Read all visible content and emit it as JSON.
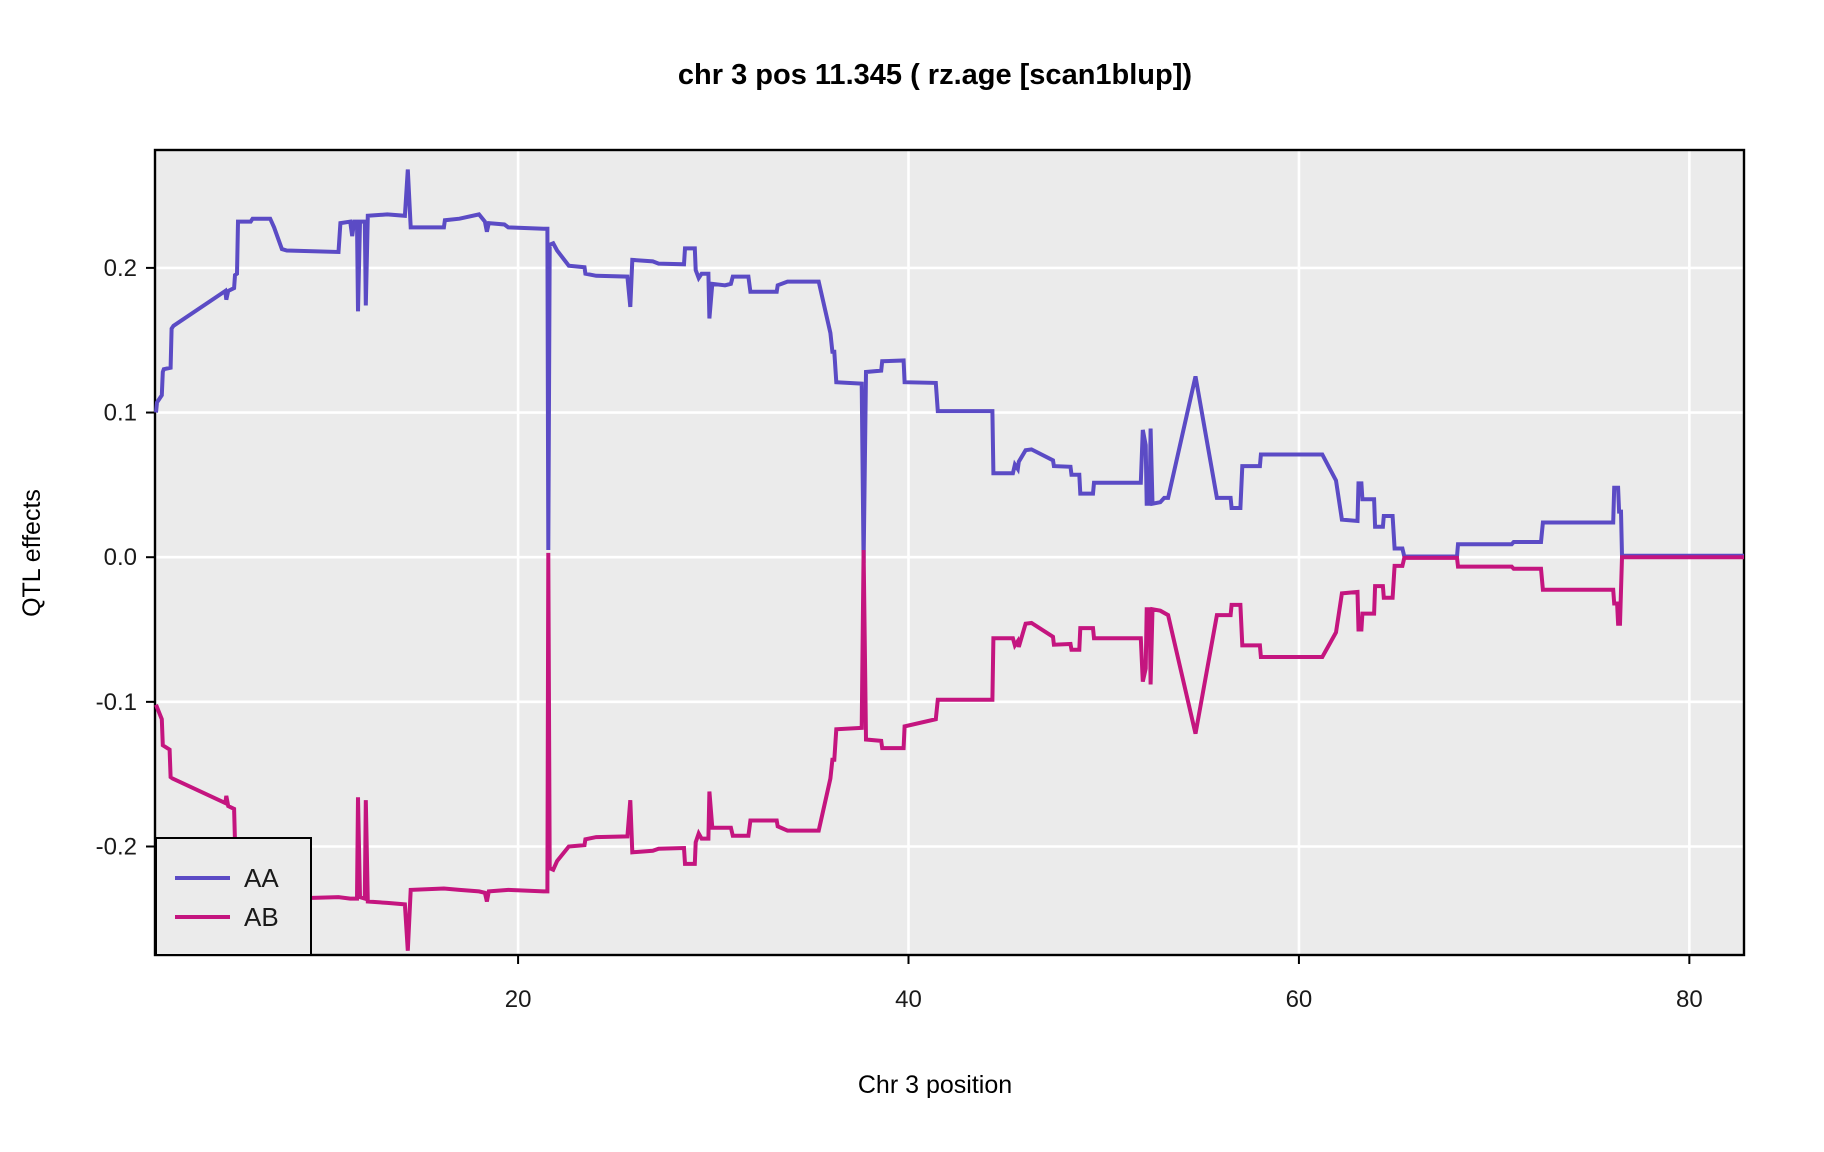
{
  "title": "chr 3 pos 11.345 ( rz.age  [scan1blup])",
  "colors": {
    "AA": "#5B4BC5",
    "AB": "#C4157F",
    "panel_bg": "#EBEBEB",
    "gridline": "#FFFFFF",
    "panel_border": "#000000",
    "text": "#000000"
  },
  "legend": {
    "position": "bottom-left",
    "entries": [
      {
        "label": "AA",
        "color": "#5B4BC5"
      },
      {
        "label": "AB",
        "color": "#C4157F"
      }
    ]
  },
  "chart_data": {
    "type": "line",
    "title": "chr 3 pos 11.345 ( rz.age  [scan1blup])",
    "xlabel": "Chr 3 position",
    "ylabel": "QTL effects",
    "xlim": [
      1.4,
      82.8
    ],
    "ylim": [
      -0.275,
      0.2815
    ],
    "x_ticks": [
      20,
      40,
      60,
      80
    ],
    "x_tick_labels": [
      "20",
      "40",
      "60",
      "80"
    ],
    "y_ticks": [
      -0.2,
      -0.1,
      0.0,
      0.1,
      0.2
    ],
    "y_tick_labels": [
      "-0.2",
      "-0.1",
      "0.0",
      "0.1",
      "0.2"
    ],
    "grid": true,
    "legend_position": "bottom-left",
    "series": [
      {
        "name": "AA",
        "color": "#5B4BC5",
        "points": [
          [
            1.45,
            0.1
          ],
          [
            1.5,
            0.107
          ],
          [
            1.75,
            0.112
          ],
          [
            1.8,
            0.128
          ],
          [
            1.85,
            0.13
          ],
          [
            2.2,
            0.131
          ],
          [
            2.25,
            0.158
          ],
          [
            2.35,
            0.16
          ],
          [
            5.0,
            0.184
          ],
          [
            5.05,
            0.178
          ],
          [
            5.15,
            0.184
          ],
          [
            5.45,
            0.186
          ],
          [
            5.5,
            0.195
          ],
          [
            5.6,
            0.196
          ],
          [
            5.65,
            0.232
          ],
          [
            6.3,
            0.232
          ],
          [
            6.4,
            0.234
          ],
          [
            7.3,
            0.234
          ],
          [
            7.5,
            0.228
          ],
          [
            7.9,
            0.213
          ],
          [
            8.15,
            0.212
          ],
          [
            10.8,
            0.211
          ],
          [
            10.9,
            0.231
          ],
          [
            11.4,
            0.232
          ],
          [
            11.5,
            0.222
          ],
          [
            11.6,
            0.232
          ],
          [
            11.75,
            0.232
          ],
          [
            11.8,
            0.17
          ],
          [
            11.9,
            0.232
          ],
          [
            12.15,
            0.232
          ],
          [
            12.2,
            0.174
          ],
          [
            12.3,
            0.236
          ],
          [
            13.3,
            0.237
          ],
          [
            14.2,
            0.236
          ],
          [
            14.35,
            0.268
          ],
          [
            14.5,
            0.228
          ],
          [
            16.2,
            0.228
          ],
          [
            16.25,
            0.233
          ],
          [
            17.0,
            0.234
          ],
          [
            18.0,
            0.237
          ],
          [
            18.3,
            0.232
          ],
          [
            18.4,
            0.225
          ],
          [
            18.5,
            0.231
          ],
          [
            19.3,
            0.23
          ],
          [
            19.5,
            0.228
          ],
          [
            21.3,
            0.227
          ],
          [
            21.5,
            0.227
          ],
          [
            21.55,
            0.005
          ],
          [
            21.62,
            0.216
          ],
          [
            21.8,
            0.217
          ],
          [
            22.0,
            0.212
          ],
          [
            22.6,
            0.2015
          ],
          [
            23.4,
            0.2005
          ],
          [
            23.45,
            0.196
          ],
          [
            24.0,
            0.1945
          ],
          [
            25.6,
            0.194
          ],
          [
            25.75,
            0.173
          ],
          [
            25.85,
            0.2055
          ],
          [
            26.9,
            0.2045
          ],
          [
            27.2,
            0.203
          ],
          [
            28.5,
            0.2025
          ],
          [
            28.55,
            0.2135
          ],
          [
            29.05,
            0.2135
          ],
          [
            29.1,
            0.1985
          ],
          [
            29.25,
            0.193
          ],
          [
            29.4,
            0.196
          ],
          [
            29.75,
            0.196
          ],
          [
            29.8,
            0.165
          ],
          [
            29.95,
            0.189
          ],
          [
            30.6,
            0.188
          ],
          [
            30.9,
            0.189
          ],
          [
            31.0,
            0.194
          ],
          [
            31.8,
            0.194
          ],
          [
            31.9,
            0.1835
          ],
          [
            33.25,
            0.1835
          ],
          [
            33.3,
            0.188
          ],
          [
            33.8,
            0.1905
          ],
          [
            35.4,
            0.1905
          ],
          [
            36.0,
            0.155
          ],
          [
            36.1,
            0.142
          ],
          [
            36.2,
            0.142
          ],
          [
            36.3,
            0.121
          ],
          [
            37.6,
            0.12
          ],
          [
            37.7,
            -0.004
          ],
          [
            37.82,
            0.128
          ],
          [
            38.6,
            0.129
          ],
          [
            38.65,
            0.1355
          ],
          [
            39.75,
            0.136
          ],
          [
            39.8,
            0.121
          ],
          [
            41.4,
            0.1205
          ],
          [
            41.5,
            0.101
          ],
          [
            44.3,
            0.101
          ],
          [
            44.35,
            0.058
          ],
          [
            45.35,
            0.058
          ],
          [
            45.45,
            0.064
          ],
          [
            45.6,
            0.061
          ],
          [
            45.65,
            0.066
          ],
          [
            46.0,
            0.074
          ],
          [
            46.3,
            0.0745
          ],
          [
            47.4,
            0.067
          ],
          [
            47.45,
            0.063
          ],
          [
            48.3,
            0.0625
          ],
          [
            48.35,
            0.057
          ],
          [
            48.75,
            0.057
          ],
          [
            48.8,
            0.044
          ],
          [
            49.45,
            0.044
          ],
          [
            49.5,
            0.0515
          ],
          [
            51.9,
            0.0515
          ],
          [
            52.0,
            0.088
          ],
          [
            52.15,
            0.0775
          ],
          [
            52.2,
            0.037
          ],
          [
            52.35,
            0.037
          ],
          [
            52.4,
            0.089
          ],
          [
            52.5,
            0.037
          ],
          [
            52.9,
            0.038
          ],
          [
            53.1,
            0.041
          ],
          [
            53.3,
            0.041
          ],
          [
            54.7,
            0.125
          ],
          [
            55.8,
            0.041
          ],
          [
            56.5,
            0.041
          ],
          [
            56.55,
            0.034
          ],
          [
            57.0,
            0.034
          ],
          [
            57.1,
            0.063
          ],
          [
            58.0,
            0.063
          ],
          [
            58.05,
            0.071
          ],
          [
            61.2,
            0.071
          ],
          [
            61.9,
            0.053
          ],
          [
            62.2,
            0.026
          ],
          [
            63.0,
            0.025
          ],
          [
            63.05,
            0.051
          ],
          [
            63.2,
            0.051
          ],
          [
            63.25,
            0.04
          ],
          [
            63.85,
            0.04
          ],
          [
            63.9,
            0.021
          ],
          [
            64.3,
            0.021
          ],
          [
            64.35,
            0.0285
          ],
          [
            64.8,
            0.0285
          ],
          [
            64.9,
            0.006
          ],
          [
            65.3,
            0.006
          ],
          [
            65.4,
            0.0005
          ],
          [
            68.1,
            0.0005
          ],
          [
            68.15,
            0.009
          ],
          [
            70.9,
            0.009
          ],
          [
            71.0,
            0.0105
          ],
          [
            72.4,
            0.0105
          ],
          [
            72.5,
            0.024
          ],
          [
            76.1,
            0.024
          ],
          [
            76.15,
            0.048
          ],
          [
            76.35,
            0.048
          ],
          [
            76.4,
            0.0315
          ],
          [
            76.5,
            0.0315
          ],
          [
            76.55,
            0.001
          ],
          [
            82.8,
            0.001
          ]
        ]
      },
      {
        "name": "AB",
        "color": "#C4157F",
        "points": [
          [
            1.45,
            -0.102
          ],
          [
            1.75,
            -0.112
          ],
          [
            1.8,
            -0.13
          ],
          [
            2.15,
            -0.133
          ],
          [
            2.2,
            -0.152
          ],
          [
            2.3,
            -0.153
          ],
          [
            5.0,
            -0.17
          ],
          [
            5.05,
            -0.165
          ],
          [
            5.15,
            -0.172
          ],
          [
            5.45,
            -0.174
          ],
          [
            5.5,
            -0.197
          ],
          [
            5.6,
            -0.198
          ],
          [
            5.65,
            -0.236
          ],
          [
            6.3,
            -0.236
          ],
          [
            7.3,
            -0.238
          ],
          [
            7.5,
            -0.236
          ],
          [
            8.15,
            -0.236
          ],
          [
            10.8,
            -0.235
          ],
          [
            11.4,
            -0.236
          ],
          [
            11.75,
            -0.236
          ],
          [
            11.8,
            -0.166
          ],
          [
            11.9,
            -0.235
          ],
          [
            12.15,
            -0.236
          ],
          [
            12.2,
            -0.168
          ],
          [
            12.3,
            -0.238
          ],
          [
            13.3,
            -0.239
          ],
          [
            14.2,
            -0.24
          ],
          [
            14.35,
            -0.272
          ],
          [
            14.5,
            -0.23
          ],
          [
            16.2,
            -0.229
          ],
          [
            17.0,
            -0.23
          ],
          [
            18.0,
            -0.231
          ],
          [
            18.3,
            -0.232
          ],
          [
            18.4,
            -0.238
          ],
          [
            18.5,
            -0.231
          ],
          [
            19.5,
            -0.23
          ],
          [
            21.3,
            -0.231
          ],
          [
            21.5,
            -0.231
          ],
          [
            21.55,
            0.003
          ],
          [
            21.62,
            -0.215
          ],
          [
            21.8,
            -0.216
          ],
          [
            22.0,
            -0.21
          ],
          [
            22.6,
            -0.2
          ],
          [
            23.4,
            -0.199
          ],
          [
            23.45,
            -0.195
          ],
          [
            24.0,
            -0.1935
          ],
          [
            25.6,
            -0.193
          ],
          [
            25.75,
            -0.168
          ],
          [
            25.85,
            -0.204
          ],
          [
            26.9,
            -0.203
          ],
          [
            27.2,
            -0.2015
          ],
          [
            28.5,
            -0.201
          ],
          [
            28.55,
            -0.212
          ],
          [
            29.05,
            -0.212
          ],
          [
            29.1,
            -0.197
          ],
          [
            29.25,
            -0.191
          ],
          [
            29.4,
            -0.1945
          ],
          [
            29.75,
            -0.1945
          ],
          [
            29.8,
            -0.162
          ],
          [
            29.95,
            -0.187
          ],
          [
            30.9,
            -0.187
          ],
          [
            31.0,
            -0.1925
          ],
          [
            31.8,
            -0.1925
          ],
          [
            31.9,
            -0.182
          ],
          [
            33.25,
            -0.182
          ],
          [
            33.3,
            -0.186
          ],
          [
            33.8,
            -0.189
          ],
          [
            35.4,
            -0.189
          ],
          [
            36.0,
            -0.153
          ],
          [
            36.1,
            -0.14
          ],
          [
            36.2,
            -0.14
          ],
          [
            36.3,
            -0.119
          ],
          [
            37.6,
            -0.118
          ],
          [
            37.7,
            0.005
          ],
          [
            37.82,
            -0.126
          ],
          [
            38.6,
            -0.127
          ],
          [
            38.65,
            -0.132
          ],
          [
            39.75,
            -0.132
          ],
          [
            39.8,
            -0.117
          ],
          [
            41.4,
            -0.112
          ],
          [
            41.5,
            -0.0985
          ],
          [
            44.3,
            -0.0985
          ],
          [
            44.35,
            -0.056
          ],
          [
            45.35,
            -0.056
          ],
          [
            45.45,
            -0.061
          ],
          [
            45.6,
            -0.058
          ],
          [
            45.65,
            -0.062
          ],
          [
            46.0,
            -0.046
          ],
          [
            46.3,
            -0.0455
          ],
          [
            47.4,
            -0.055
          ],
          [
            47.45,
            -0.0605
          ],
          [
            48.3,
            -0.06
          ],
          [
            48.35,
            -0.064
          ],
          [
            48.75,
            -0.064
          ],
          [
            48.8,
            -0.049
          ],
          [
            49.45,
            -0.049
          ],
          [
            49.5,
            -0.056
          ],
          [
            51.9,
            -0.056
          ],
          [
            52.0,
            -0.086
          ],
          [
            52.15,
            -0.077
          ],
          [
            52.2,
            -0.036
          ],
          [
            52.35,
            -0.036
          ],
          [
            52.4,
            -0.088
          ],
          [
            52.5,
            -0.036
          ],
          [
            52.9,
            -0.037
          ],
          [
            53.3,
            -0.04
          ],
          [
            54.7,
            -0.122
          ],
          [
            55.8,
            -0.04
          ],
          [
            56.5,
            -0.04
          ],
          [
            56.55,
            -0.033
          ],
          [
            57.0,
            -0.033
          ],
          [
            57.1,
            -0.061
          ],
          [
            58.0,
            -0.061
          ],
          [
            58.05,
            -0.069
          ],
          [
            61.2,
            -0.069
          ],
          [
            61.9,
            -0.052
          ],
          [
            62.2,
            -0.025
          ],
          [
            63.0,
            -0.024
          ],
          [
            63.05,
            -0.05
          ],
          [
            63.2,
            -0.05
          ],
          [
            63.25,
            -0.039
          ],
          [
            63.85,
            -0.039
          ],
          [
            63.9,
            -0.02
          ],
          [
            64.3,
            -0.02
          ],
          [
            64.35,
            -0.028
          ],
          [
            64.8,
            -0.028
          ],
          [
            64.9,
            -0.006
          ],
          [
            65.3,
            -0.006
          ],
          [
            65.4,
            -0.0005
          ],
          [
            68.1,
            -0.0005
          ],
          [
            68.15,
            -0.0065
          ],
          [
            70.9,
            -0.0065
          ],
          [
            71.0,
            -0.008
          ],
          [
            72.4,
            -0.008
          ],
          [
            72.5,
            -0.0225
          ],
          [
            76.1,
            -0.0225
          ],
          [
            76.15,
            -0.032
          ],
          [
            76.3,
            -0.032
          ],
          [
            76.35,
            -0.046
          ],
          [
            76.45,
            -0.046
          ],
          [
            76.55,
            0.0
          ],
          [
            82.8,
            0.0
          ]
        ]
      }
    ]
  }
}
